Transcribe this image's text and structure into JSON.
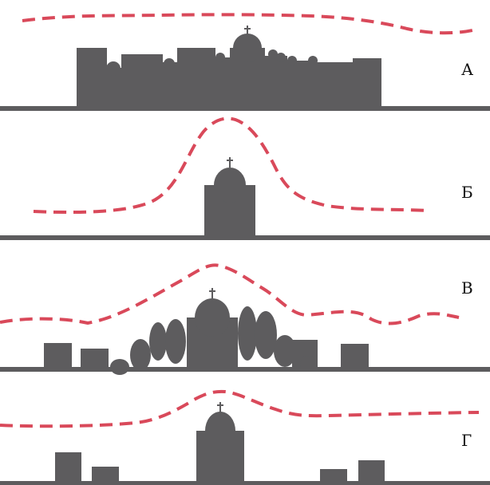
{
  "colors": {
    "silhouette": "#5d5c5e",
    "skyline": "#d9495a",
    "background": "#ffffff"
  },
  "panels": [
    {
      "id": "a",
      "label": "А"
    },
    {
      "id": "b",
      "label": "Б"
    },
    {
      "id": "v",
      "label": "В"
    },
    {
      "id": "g",
      "label": "Г"
    }
  ]
}
